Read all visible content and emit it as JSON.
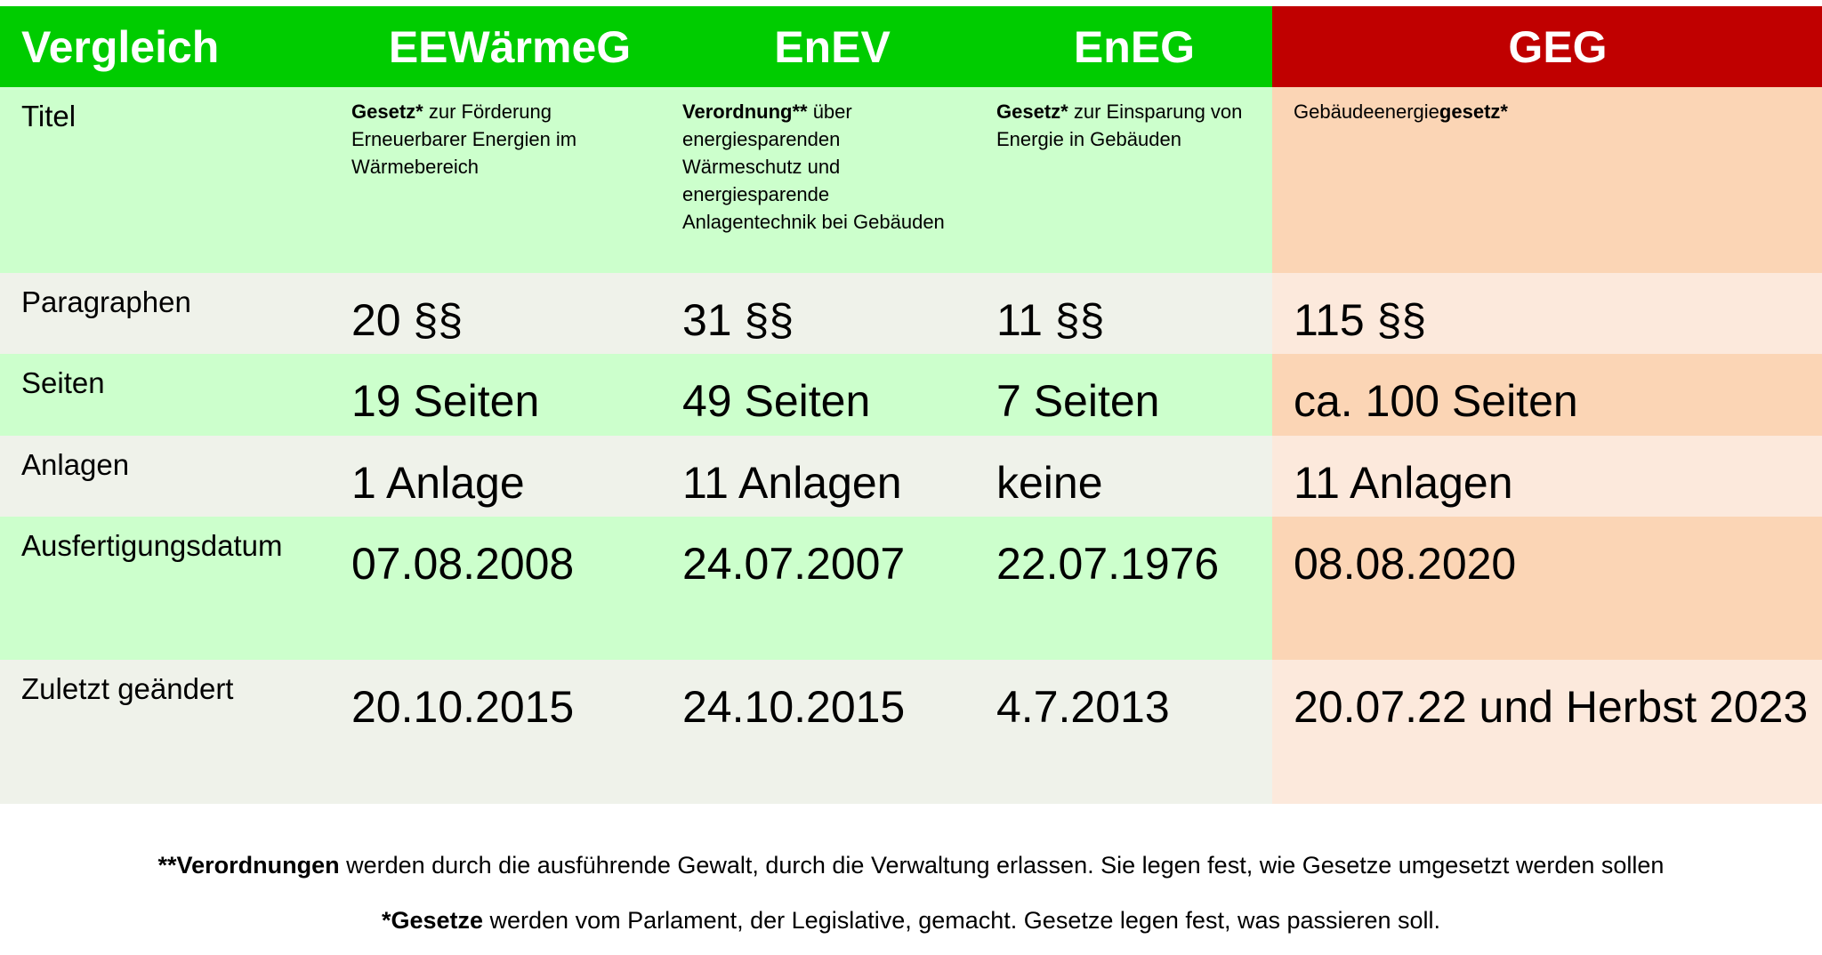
{
  "table": {
    "header": [
      "Vergleich",
      "EEWärmeG",
      "EnEV",
      "EnEG",
      "GEG"
    ],
    "rows": [
      [
        "Titel",
        [
          {
            "text": "Gesetz*",
            "bold": true
          },
          {
            "text": " zur Förderung Erneuerbarer Energien im Wärmebereich",
            "bold": false
          }
        ],
        [
          {
            "text": "Verordnung**",
            "bold": true
          },
          {
            "text": " über energiesparenden Wärmeschutz und energiesparende Anlagentechnik bei Gebäuden",
            "bold": false
          }
        ],
        [
          {
            "text": "Gesetz*",
            "bold": true
          },
          {
            "text": " zur Einsparung von Energie in Gebäuden",
            "bold": false
          }
        ],
        [
          {
            "text": "Gebäudeenergie",
            "bold": false
          },
          {
            "text": "gesetz*",
            "bold": true
          }
        ]
      ],
      [
        "Paragraphen",
        "20 §§",
        "31 §§",
        "11 §§",
        "115 §§"
      ],
      [
        "Seiten",
        "19 Seiten",
        "49 Seiten",
        "7 Seiten",
        "ca. 100 Seiten"
      ],
      [
        "Anlagen",
        "1 Anlage",
        "11 Anlagen",
        "keine",
        "11 Anlagen"
      ],
      [
        "Ausfertigungsdatum",
        "07.08.2008",
        "24.07.2007",
        "22.07.1976",
        "08.08.2020"
      ],
      [
        "Zuletzt geändert",
        "20.10.2015",
        "24.10.2015",
        "4.7.2013",
        "20.07.22 und Herbst 2023"
      ]
    ]
  },
  "footer": [
    [
      {
        "text": "**Verordnungen",
        "bold": true
      },
      {
        "text": " werden durch die ausführende Gewalt, durch die Verwaltung erlassen. Sie legen fest, wie Gesetze umgesetzt werden sollen",
        "bold": false
      }
    ],
    [
      {
        "text": "*Gesetze",
        "bold": true
      },
      {
        "text": " werden vom Parlament, der Legislative, gemacht. Gesetze legen fest, was passieren soll.",
        "bold": false
      }
    ]
  ]
}
